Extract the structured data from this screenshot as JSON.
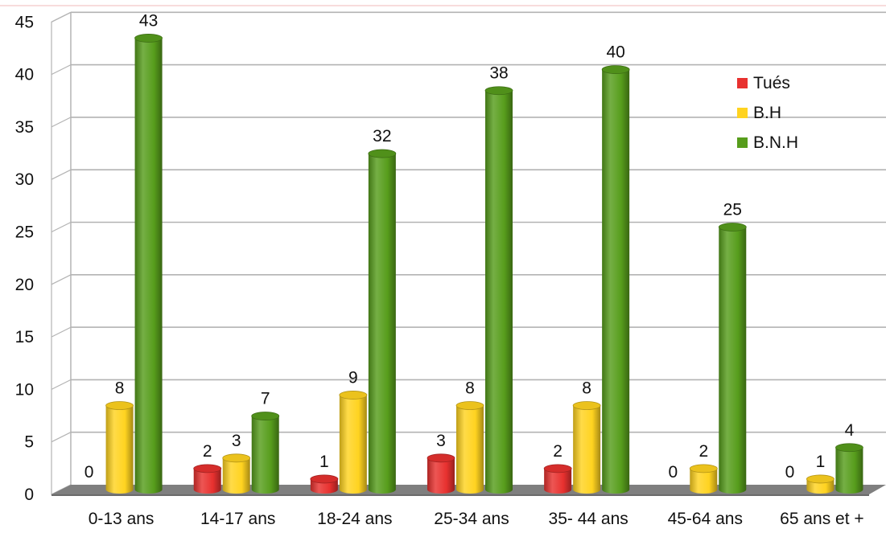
{
  "chart_data": {
    "type": "bar",
    "categories": [
      "0-13 ans",
      "14-17 ans",
      "18-24 ans",
      "25-34 ans",
      "35- 44 ans",
      "45-64 ans",
      "65 ans et +"
    ],
    "series": [
      {
        "name": "Tués",
        "color": "#e8312f",
        "values": [
          0,
          2,
          1,
          3,
          2,
          0,
          0
        ]
      },
      {
        "name": "B.H",
        "color": "#ffd320",
        "values": [
          8,
          3,
          9,
          8,
          8,
          2,
          1
        ]
      },
      {
        "name": "B.N.H",
        "color": "#579d1c",
        "values": [
          43,
          7,
          32,
          38,
          40,
          25,
          4
        ]
      }
    ],
    "yticks": [
      "0",
      "5",
      "10",
      "15",
      "20",
      "25",
      "30",
      "35",
      "40",
      "45"
    ],
    "ylim": [
      0,
      45
    ],
    "grid": true,
    "legend_position": "top-right",
    "title": "",
    "xlabel": "",
    "ylabel": ""
  }
}
